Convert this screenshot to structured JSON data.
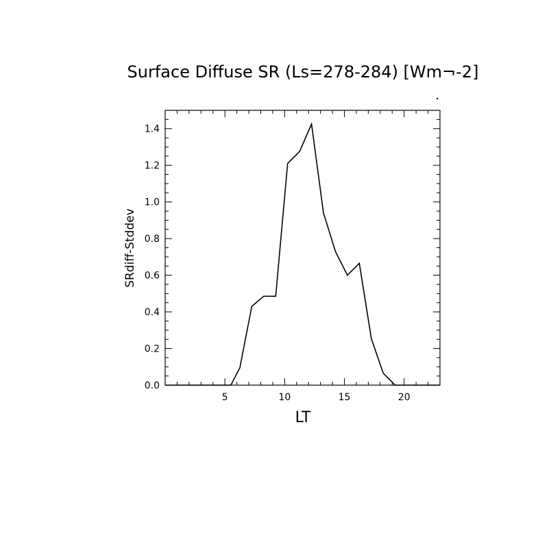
{
  "chart_data": {
    "type": "line",
    "title": "Surface Diffuse SR (Ls=278-284) [Wm¬-2]",
    "xlabel": "LT",
    "ylabel": "SRdiff-Stddev",
    "xlim": [
      0,
      23
    ],
    "ylim": [
      0,
      1.5
    ],
    "xticks": [
      5,
      10,
      15,
      20
    ],
    "yticks": [
      0.0,
      0.2,
      0.4,
      0.6,
      0.8,
      1.0,
      1.2,
      1.4
    ],
    "ytick_labels": [
      "0.0",
      "0.2",
      "0.4",
      "0.6",
      "0.8",
      "1.0",
      "1.2",
      "1.4"
    ],
    "grid": false,
    "legend": "none",
    "series": [
      {
        "x": [
          0,
          1,
          2,
          3,
          4,
          5,
          5.5,
          6.25,
          7.25,
          8.25,
          9.25,
          10.25,
          11.25,
          12.25,
          13.25,
          14.25,
          15.25,
          16.25,
          17.25,
          18.25,
          19.25,
          20,
          21,
          22,
          23
        ],
        "y": [
          0,
          0,
          0,
          0,
          0,
          0,
          0,
          0.095,
          0.43,
          0.485,
          0.485,
          1.21,
          1.275,
          1.425,
          0.94,
          0.73,
          0.6,
          0.665,
          0.255,
          0.065,
          0,
          0,
          0,
          0,
          0
        ]
      }
    ],
    "color": "#000000"
  }
}
